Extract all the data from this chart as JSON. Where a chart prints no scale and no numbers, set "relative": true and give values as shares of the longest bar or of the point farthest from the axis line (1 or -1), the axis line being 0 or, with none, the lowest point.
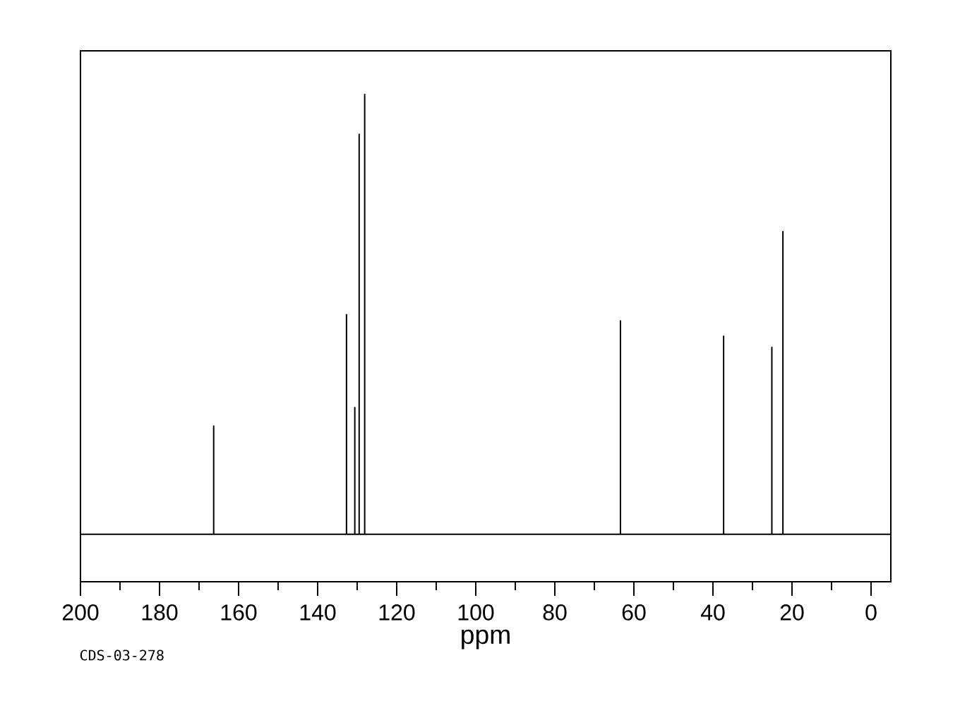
{
  "chart_data": {
    "type": "line",
    "relative": true,
    "xlabel": "ppm",
    "annotations": [
      "CDS-03-278"
    ],
    "series": [
      {
        "color": "#000000",
        "x": [
          200,
          166.3,
          166.3,
          166.3,
          132.7,
          132.7,
          132.7,
          130.6,
          130.6,
          130.6,
          129.5,
          129.5,
          129.5,
          128.1,
          128.1,
          128.1,
          63.4,
          63.4,
          63.4,
          37.3,
          37.3,
          37.3,
          25.1,
          25.1,
          25.1,
          22.3,
          22.3,
          22.3,
          -5
        ],
        "values": [
          0,
          0,
          0.246,
          0,
          0,
          0.499,
          0,
          0,
          0.288,
          0,
          0,
          0.909,
          0,
          0,
          1,
          0,
          0,
          0.485,
          0,
          0,
          0.45,
          0,
          0,
          0.425,
          0,
          0,
          0.688,
          0,
          0
        ]
      }
    ],
    "xlim": [
      200,
      -5
    ],
    "xticks": [
      200,
      180,
      160,
      140,
      120,
      100,
      80,
      60,
      40,
      20,
      0
    ],
    "grid": false,
    "marker": "none",
    "line_style": "solid"
  }
}
